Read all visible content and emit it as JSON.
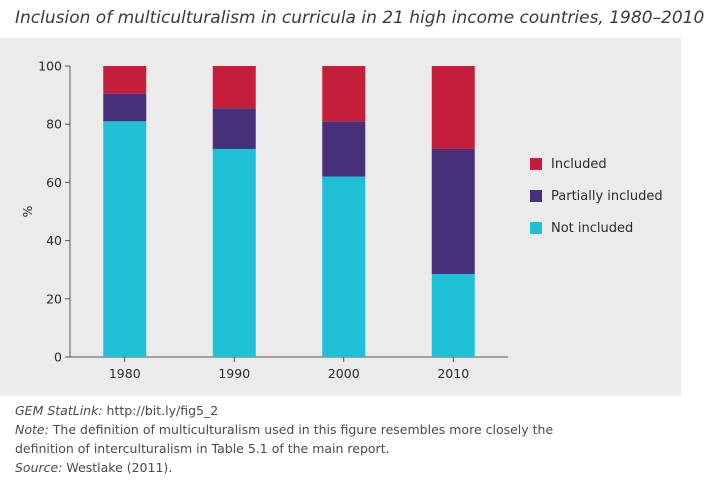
{
  "title": "Inclusion of multiculturalism in curricula in 21 high income countries, 1980–2010",
  "colors": {
    "included": "#c41e3a",
    "partially": "#46307a",
    "not": "#1ec0d6",
    "background": "#ecebeb"
  },
  "chart_data": {
    "type": "bar",
    "stacked": true,
    "categories": [
      "1980",
      "1990",
      "2000",
      "2010"
    ],
    "series": [
      {
        "name": "Not included",
        "values": [
          81,
          71.5,
          62,
          28.5
        ]
      },
      {
        "name": "Partially included",
        "values": [
          9.5,
          14,
          19,
          43
        ]
      },
      {
        "name": "Included",
        "values": [
          9.5,
          14.5,
          19,
          28.5
        ]
      }
    ],
    "ylabel": "%",
    "ylim": [
      0,
      100
    ],
    "yticks": [
      "0",
      "20",
      "40",
      "60",
      "80",
      "100"
    ],
    "legend_position": "right",
    "grid": false
  },
  "legend": [
    {
      "label": "Included",
      "color": "#c41e3a"
    },
    {
      "label": "Partially included",
      "color": "#46307a"
    },
    {
      "label": "Not included",
      "color": "#1ec0d6"
    }
  ],
  "notes": {
    "statlink_label": "GEM StatLink:",
    "statlink_url": "http://bit.ly/fig5_2",
    "note_label": "Note:",
    "note_text_1": "The definition of multiculturalism used in this figure resembles more closely the",
    "note_text_2": "definition of interculturalism in Table 5.1 of the main report.",
    "source_label": "Source:",
    "source_text": "Westlake (2011)."
  }
}
